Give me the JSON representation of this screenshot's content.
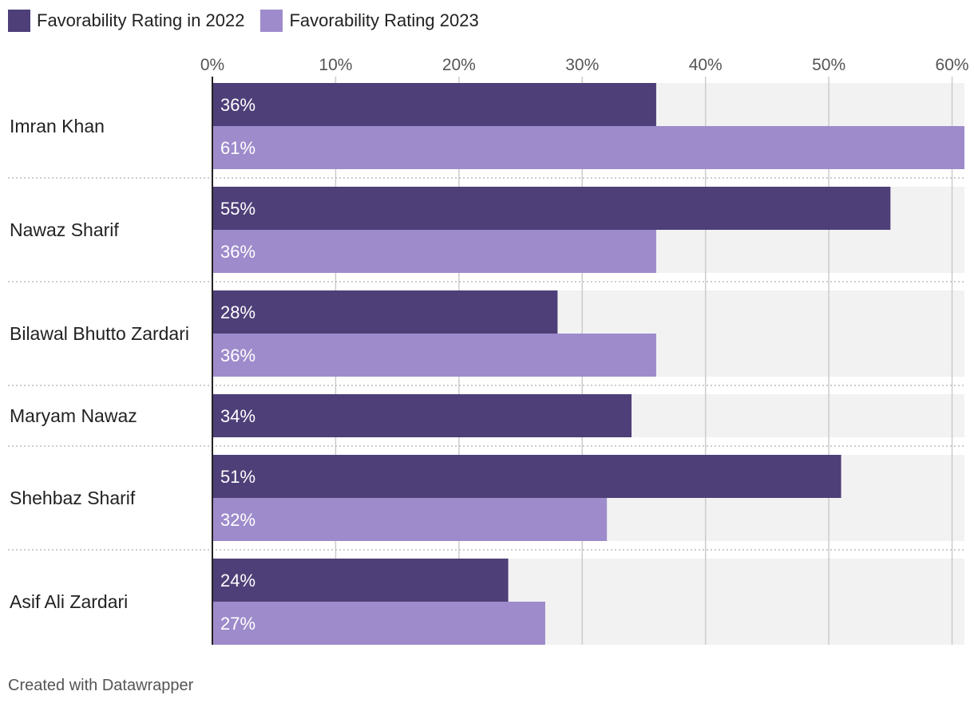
{
  "chart_data": {
    "type": "bar",
    "orientation": "horizontal",
    "categories": [
      "Imran Khan",
      "Nawaz Sharif",
      "Bilawal Bhutto Zardari",
      "Maryam Nawaz",
      "Shehbaz Sharif",
      "Asif Ali Zardari"
    ],
    "series": [
      {
        "name": "Favorability Rating in 2022",
        "color": "#4e3f78",
        "values": [
          36,
          55,
          28,
          34,
          51,
          24
        ],
        "labels": [
          "36%",
          "55%",
          "28%",
          "34%",
          "51%",
          "24%"
        ]
      },
      {
        "name": "Favorability Rating 2023",
        "color": "#9e8bcb",
        "values": [
          61,
          36,
          36,
          null,
          32,
          27
        ],
        "labels": [
          "61%",
          "36%",
          "36%",
          null,
          "32%",
          "27%"
        ]
      }
    ],
    "x_ticks": [
      0,
      10,
      20,
      30,
      40,
      50,
      60
    ],
    "x_tick_labels": [
      "0%",
      "10%",
      "20%",
      "30%",
      "40%",
      "50%",
      "60%"
    ],
    "xlim": [
      0,
      61
    ],
    "grid": true
  },
  "legend": {
    "items": [
      {
        "label": "Favorability Rating in 2022",
        "color": "#4e3f78"
      },
      {
        "label": "Favorability Rating 2023",
        "color": "#9e8bcb"
      }
    ]
  },
  "footer": {
    "credit": "Created with Datawrapper"
  }
}
